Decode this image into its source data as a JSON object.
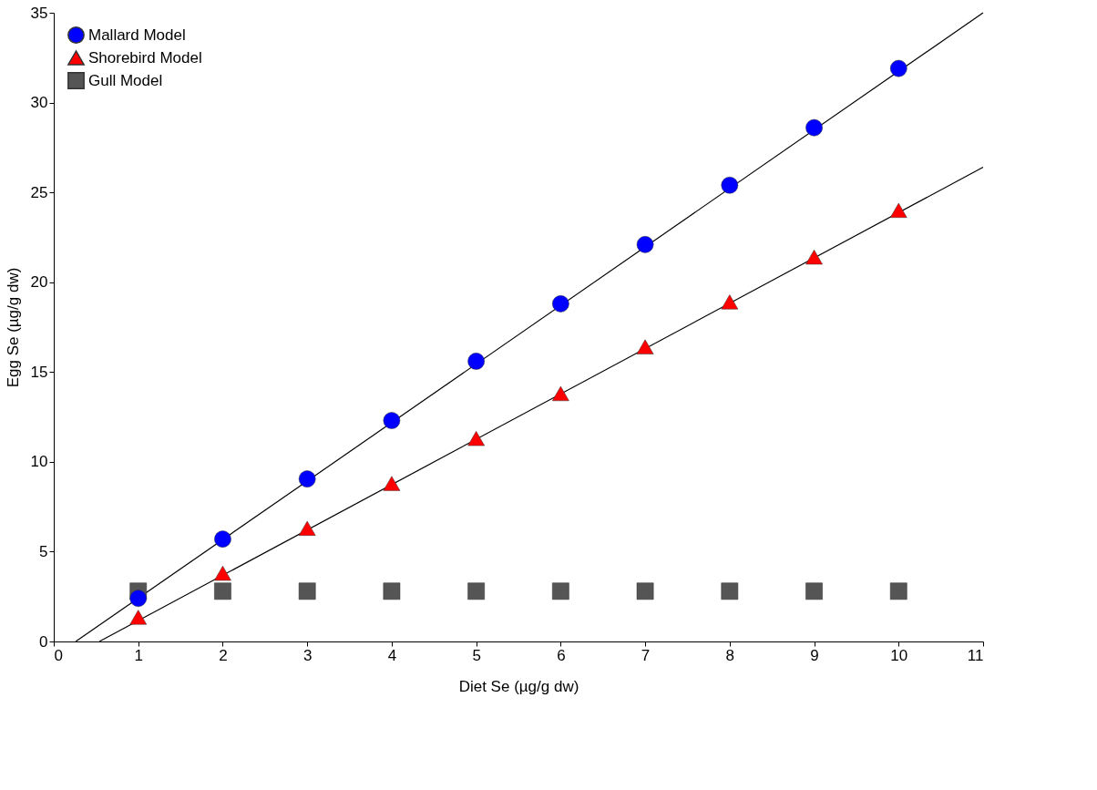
{
  "chart_data": {
    "type": "scatter",
    "xlabel": "Diet Se (µg/g dw)",
    "ylabel": "Egg Se (µg/g dw)",
    "x": [
      1,
      2,
      3,
      4,
      5,
      6,
      7,
      8,
      9,
      10
    ],
    "xlim": [
      0,
      11
    ],
    "xticks": [
      0,
      1,
      2,
      3,
      4,
      5,
      6,
      7,
      8,
      9,
      10,
      11
    ],
    "ylim": [
      0,
      35
    ],
    "yticks": [
      0,
      5,
      10,
      15,
      20,
      25,
      30,
      35
    ],
    "grid": false,
    "legend": "top left",
    "series": [
      {
        "name": "Mallard Model",
        "color": "#0000ff",
        "marker": "circle",
        "values": [
          2.4,
          5.7,
          9.05,
          12.3,
          15.6,
          18.8,
          22.1,
          25.4,
          28.6,
          31.9
        ]
      },
      {
        "name": "Shorebird Model",
        "color": "#ff0000",
        "marker": "triangle",
        "values": [
          1.35,
          3.8,
          6.3,
          8.8,
          11.3,
          13.8,
          16.4,
          18.9,
          21.4,
          24.0
        ]
      },
      {
        "name": "Gull Model",
        "color": "#555555",
        "marker": "square",
        "values": [
          2.8,
          2.8,
          2.8,
          2.8,
          2.8,
          2.8,
          2.8,
          2.8,
          2.8,
          2.8
        ]
      },
      {
        "type": "line",
        "color": "#000000",
        "x": [
          0.26,
          11
        ],
        "values": [
          0,
          35
        ]
      },
      {
        "type": "line",
        "color": "#000000",
        "x": [
          0.54,
          11
        ],
        "values": [
          0,
          26.4
        ]
      }
    ]
  }
}
